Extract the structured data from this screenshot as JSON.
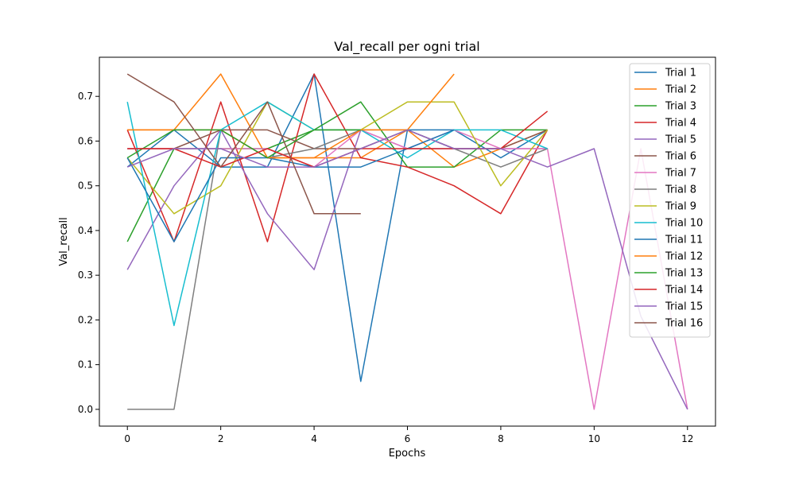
{
  "chart_data": {
    "type": "line",
    "title": "Val_recall per ogni trial",
    "xlabel": "Epochs",
    "ylabel": "Val_recall",
    "xlim": [
      -0.6,
      12.6
    ],
    "ylim": [
      -0.0375,
      0.7875
    ],
    "xticks": [
      0,
      2,
      4,
      6,
      8,
      10,
      12
    ],
    "yticks": [
      0.0,
      0.1,
      0.2,
      0.3,
      0.4,
      0.5,
      0.6,
      0.7
    ],
    "ytick_labels": [
      "0.0",
      "0.1",
      "0.2",
      "0.3",
      "0.4",
      "0.5",
      "0.6",
      "0.7"
    ],
    "grid": false,
    "legend_position": "top-right",
    "series": [
      {
        "name": "Trial 1",
        "color": "#1f77b4",
        "values": [
          0.542,
          0.625,
          0.542,
          0.542,
          0.75,
          0.0625,
          0.625,
          0.625,
          0.5625,
          0.625
        ]
      },
      {
        "name": "Trial 2",
        "color": "#ff7f0e",
        "values": [
          0.625,
          0.625,
          0.75,
          0.5625,
          0.5625,
          0.5625,
          0.625,
          0.542,
          0.583,
          0.625
        ]
      },
      {
        "name": "Trial 3",
        "color": "#2ca02c",
        "values": [
          0.375,
          0.583,
          0.583,
          0.583,
          0.625,
          0.6875,
          0.542,
          0.542,
          0.625,
          0.625
        ]
      },
      {
        "name": "Trial 4",
        "color": "#d62728",
        "values": [
          0.625,
          0.375,
          0.6875,
          0.375,
          0.75,
          0.5625,
          0.542,
          0.5,
          0.4375,
          0.625
        ]
      },
      {
        "name": "Trial 5",
        "color": "#9467bd",
        "values": [
          0.3125,
          0.5,
          0.625,
          0.4375,
          0.3125,
          0.625,
          0.583,
          0.583,
          0.583,
          0.583
        ]
      },
      {
        "name": "Trial 6",
        "color": "#8c564b",
        "values": [
          0.583,
          0.583,
          0.625,
          0.625,
          0.583,
          0.583,
          0.625,
          0.583,
          0.583,
          0.625
        ]
      },
      {
        "name": "Trial 7",
        "color": "#e377c2",
        "values": [
          0.583,
          0.583,
          0.583,
          0.583,
          0.542,
          0.625,
          0.583,
          0.625,
          0.583,
          0.583,
          0.0,
          0.583,
          0.0
        ]
      },
      {
        "name": "Trial 8",
        "color": "#7f7f7f",
        "values": [
          0.0,
          0.0,
          0.625,
          0.5625,
          0.583,
          0.625,
          0.625,
          0.583,
          0.542,
          0.583
        ]
      },
      {
        "name": "Trial 9",
        "color": "#bcbd22",
        "values": [
          0.5625,
          0.4375,
          0.5,
          0.6875,
          0.625,
          0.625,
          0.6875,
          0.6875,
          0.5,
          0.625
        ]
      },
      {
        "name": "Trial 10",
        "color": "#17becf",
        "values": [
          0.6875,
          0.1875,
          0.625,
          0.6875,
          0.625,
          0.625,
          0.5625,
          0.625,
          0.625,
          0.583
        ]
      },
      {
        "name": "Trial 11",
        "color": "#1f77b4",
        "values": [
          0.5625,
          0.375,
          0.5625,
          0.5625,
          0.542,
          0.542,
          0.583,
          0.625
        ]
      },
      {
        "name": "Trial 12",
        "color": "#ff7f0e",
        "values": [
          0.625,
          0.625,
          0.625,
          0.5625,
          0.5625,
          0.625,
          0.625,
          0.75
        ]
      },
      {
        "name": "Trial 13",
        "color": "#2ca02c",
        "values": [
          0.5625,
          0.625,
          0.625,
          0.5625,
          0.625,
          0.625
        ]
      },
      {
        "name": "Trial 14",
        "color": "#d62728",
        "values": [
          0.583,
          0.583,
          0.542,
          0.583,
          0.542,
          0.583,
          0.583,
          0.583,
          0.583,
          0.6667
        ]
      },
      {
        "name": "Trial 15",
        "color": "#9467bd",
        "values": [
          0.542,
          0.583,
          0.583,
          0.542,
          0.542,
          0.583,
          0.625,
          0.583,
          0.583,
          0.542,
          0.583,
          0.2083,
          0.0
        ]
      },
      {
        "name": "Trial 16",
        "color": "#8c564b",
        "values": [
          0.75,
          0.6875,
          0.542,
          0.6875,
          0.4375,
          0.4375
        ]
      }
    ]
  }
}
